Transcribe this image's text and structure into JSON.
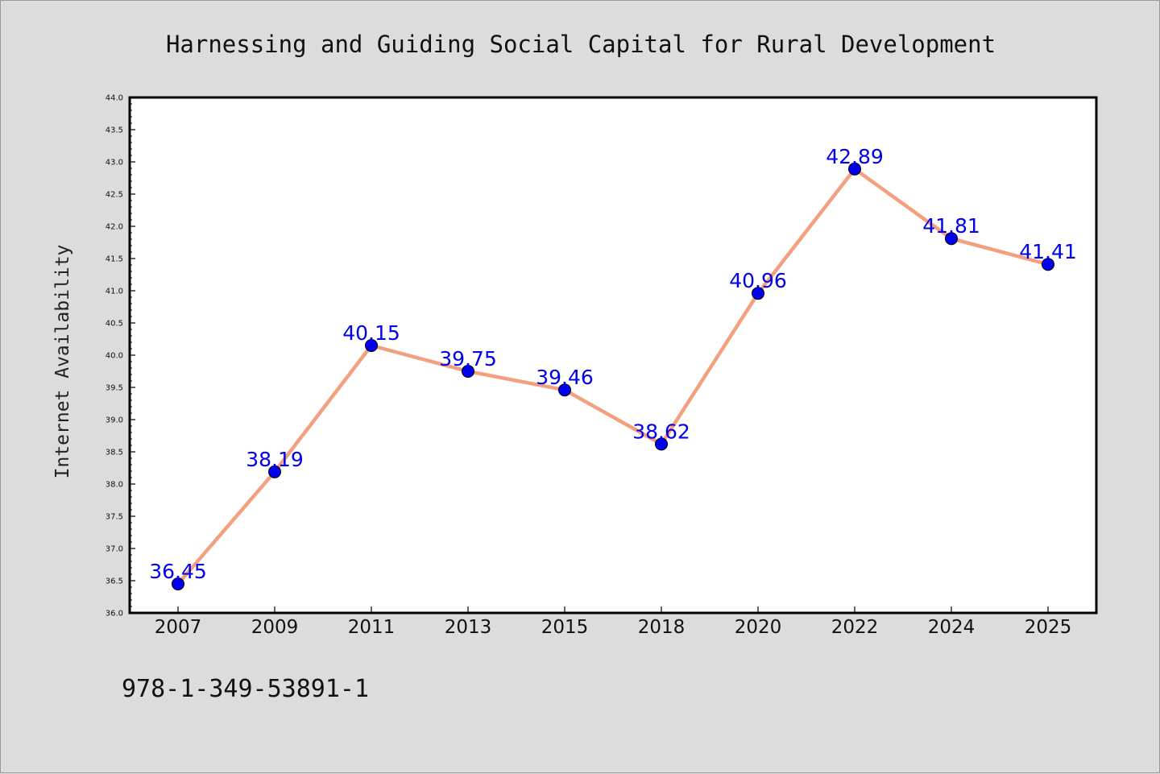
{
  "chart_data": {
    "type": "line",
    "title": "Harnessing and Guiding Social Capital for Rural Development",
    "xlabel": "",
    "ylabel": "Internet Availability",
    "categories": [
      "2007",
      "2009",
      "2011",
      "2013",
      "2015",
      "2018",
      "2020",
      "2022",
      "2024",
      "2025"
    ],
    "series": [
      {
        "values": [
          36.45,
          38.19,
          40.15,
          39.75,
          39.46,
          38.62,
          40.96,
          42.89,
          41.81,
          41.41
        ],
        "data_labels": [
          "36.45",
          "38.19",
          "40.15",
          "39.75",
          "39.46",
          "38.62",
          "40.96",
          "42.89",
          "41.81",
          "41.41"
        ],
        "line_color": "#f4a07e",
        "marker_color": "#0000ee"
      }
    ],
    "ylim": [
      36.0,
      44.0
    ],
    "yticks": [
      "36.0",
      "36.5",
      "37.0",
      "37.5",
      "38.0",
      "38.5",
      "39.0",
      "39.5",
      "40.0",
      "40.5",
      "41.0",
      "41.5",
      "42.0",
      "42.5",
      "43.0",
      "43.5",
      "44.0"
    ],
    "grid": false,
    "legend": "none"
  },
  "footer": {
    "isbn": "978-1-349-53891-1"
  }
}
